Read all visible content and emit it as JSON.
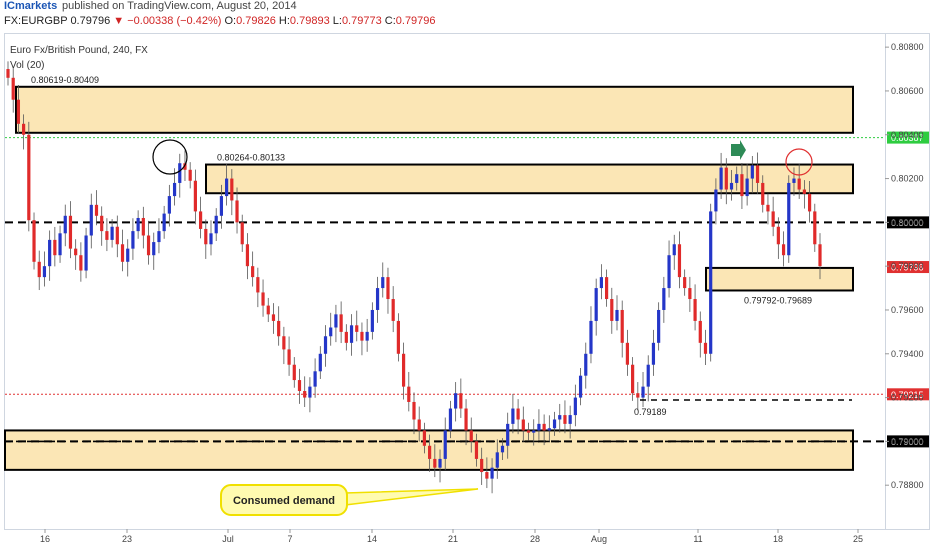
{
  "header": {
    "brand": "ICmarkets",
    "published": "published on TradingView.com, August 20, 2014",
    "symbol": "FX:EURGBP",
    "last": "0.79796",
    "change": "−0.00338 (−0.42%)",
    "open_label": "O:",
    "open": "0.79826",
    "high_label": "H:",
    "high": "0.79893",
    "low_label": "L:",
    "low": "0.79773",
    "close_label": "C:",
    "close": "0.79796"
  },
  "chart_data": {
    "type": "candlestick",
    "title": "Euro Fx/British Pound, 240, FX",
    "subtitle": "Vol (20)",
    "ylim": [
      0.786,
      0.8086
    ],
    "y_ticks": [
      "0.80800",
      "0.80600",
      "0.80400",
      "0.80200",
      "0.80000",
      "0.79800",
      "0.79600",
      "0.79400",
      "0.79200",
      "0.79000",
      "0.78800"
    ],
    "x_ticks": [
      "16",
      "23",
      "Jul",
      "7",
      "14",
      "21",
      "28",
      "Aug",
      "11",
      "18",
      "25"
    ],
    "zones": [
      {
        "label": "0.80619-0.80409",
        "low": 0.80409,
        "high": 0.80619
      },
      {
        "label": "0.80264-0.80133",
        "low": 0.80133,
        "high": 0.80264
      },
      {
        "label": "0.79792-0.79689",
        "low": 0.79689,
        "high": 0.79792
      },
      {
        "label": "",
        "low": 0.7887,
        "high": 0.7905
      }
    ],
    "levels": [
      {
        "value": 0.80387,
        "label": "0.80387",
        "style": "dotted",
        "color": "#2ecc40"
      },
      {
        "value": 0.8,
        "label": "0.80000",
        "style": "dashed",
        "color": "#000000"
      },
      {
        "value": 0.79796,
        "label": "0.79796",
        "style": "none",
        "color": "#e03030"
      },
      {
        "value": 0.79215,
        "label": "0.79215",
        "style": "dotted",
        "color": "#e03030"
      },
      {
        "value": 0.79,
        "label": "0.79000",
        "style": "dashed",
        "color": "#000000"
      }
    ],
    "low_marker": {
      "label": "0.79189",
      "value": 0.79189
    },
    "callout": "Consumed demand",
    "closes": [
      0.8066,
      0.8056,
      0.8045,
      0.804,
      0.8001,
      0.7982,
      0.7975,
      0.798,
      0.7992,
      0.7985,
      0.7995,
      0.8003,
      0.7988,
      0.7985,
      0.7978,
      0.7994,
      0.8008,
      0.8003,
      0.7996,
      0.7992,
      0.7998,
      0.799,
      0.7982,
      0.7988,
      0.7996,
      0.8002,
      0.7994,
      0.7985,
      0.7991,
      0.7996,
      0.8004,
      0.8012,
      0.8018,
      0.8027,
      0.8024,
      0.8019,
      0.8005,
      0.7997,
      0.799,
      0.7995,
      0.8003,
      0.8012,
      0.802,
      0.801,
      0.8,
      0.799,
      0.798,
      0.7975,
      0.7968,
      0.7962,
      0.7958,
      0.7955,
      0.7948,
      0.7942,
      0.7935,
      0.7928,
      0.7923,
      0.792,
      0.7925,
      0.7932,
      0.794,
      0.7948,
      0.7952,
      0.7958,
      0.795,
      0.7945,
      0.7953,
      0.795,
      0.7946,
      0.795,
      0.796,
      0.797,
      0.7975,
      0.7965,
      0.7955,
      0.794,
      0.7925,
      0.7918,
      0.791,
      0.7905,
      0.7898,
      0.7892,
      0.7888,
      0.7892,
      0.7905,
      0.7915,
      0.7922,
      0.7915,
      0.7905,
      0.79,
      0.7892,
      0.7886,
      0.7883,
      0.7888,
      0.7895,
      0.7898,
      0.7908,
      0.7915,
      0.791,
      0.7905,
      0.7904,
      0.7905,
      0.7908,
      0.7905,
      0.7906,
      0.791,
      0.7912,
      0.7908,
      0.7912,
      0.792,
      0.793,
      0.794,
      0.7955,
      0.797,
      0.7975,
      0.7965,
      0.7955,
      0.796,
      0.7945,
      0.7935,
      0.7922,
      0.792,
      0.7925,
      0.7935,
      0.7945,
      0.796,
      0.797,
      0.7985,
      0.799,
      0.7975,
      0.797,
      0.7965,
      0.7955,
      0.7945,
      0.794,
      0.8005,
      0.8015,
      0.8025,
      0.8015,
      0.8018,
      0.8022,
      0.8012,
      0.802,
      0.8026,
      0.8018,
      0.8008,
      0.8005,
      0.7998,
      0.799,
      0.7985,
      0.8018,
      0.802,
      0.8015,
      0.8013,
      0.8005,
      0.799,
      0.798
    ]
  }
}
